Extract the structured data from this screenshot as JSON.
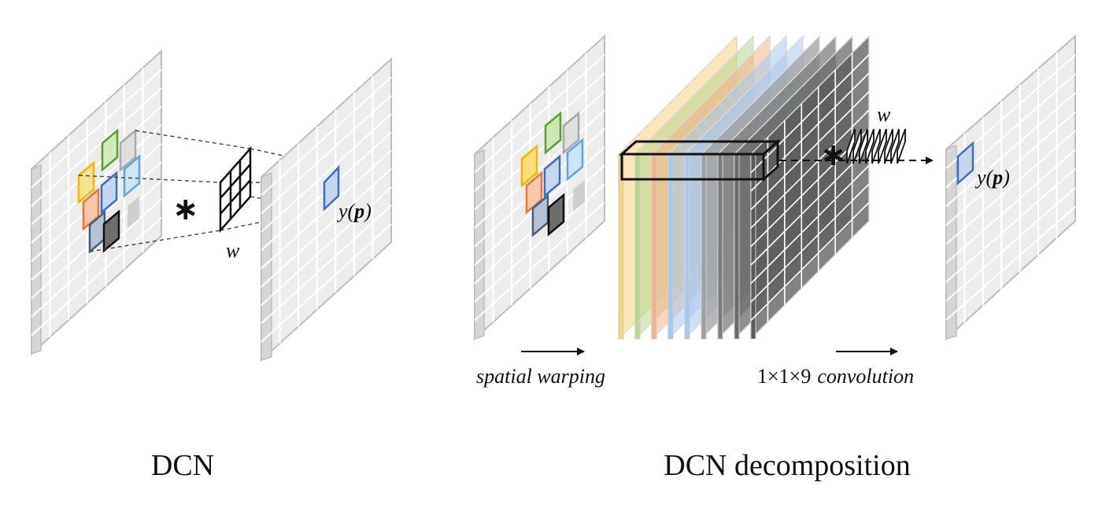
{
  "panels": {
    "left": {
      "caption": "DCN",
      "operator": "∗",
      "kernel_label": "w",
      "output_label": "y(p)",
      "sample_colors": [
        "#f2b705",
        "#5aa02c",
        "#a9a9a9",
        "#e6783a",
        "#3b6fbf",
        "#5ea6e0",
        "#cfcfcf",
        "#4a5d7a",
        "#222222"
      ]
    },
    "right": {
      "caption": "DCN decomposition",
      "operator": "∗",
      "kernel_label": "w",
      "output_label": "y(p)",
      "warp_label": "spatial warping",
      "conv_label_prefix": "1×1×9",
      "conv_label_word": "convolution",
      "stack_colors": [
        "#f6d27a",
        "#b9d78f",
        "#f3b48a",
        "#a8c8ec",
        "#a8c8ec",
        "#9f9f9f",
        "#7d7d7d",
        "#6a6a6a",
        "#5a5a5a"
      ]
    }
  }
}
